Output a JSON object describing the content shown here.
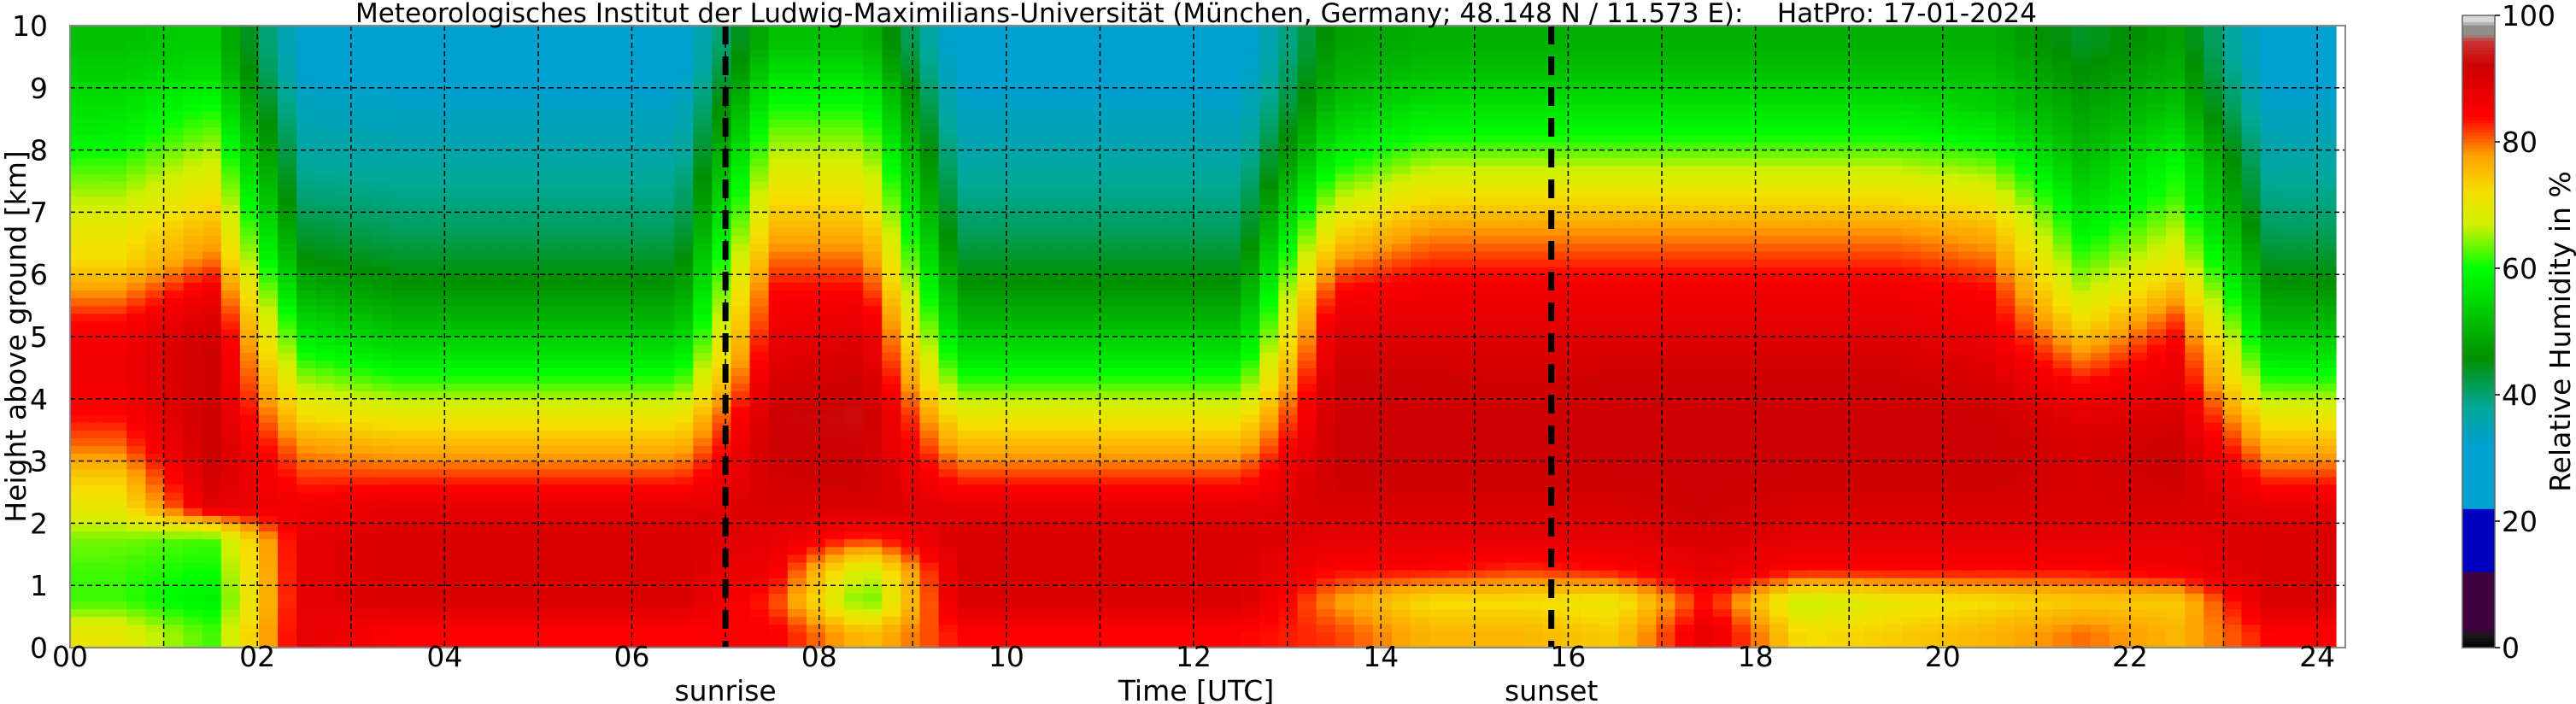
{
  "chart_data": {
    "type": "heatmap",
    "title": "Meteorologisches Institut der Ludwig-Maximilians-Universität (München, Germany; 48.148 N / 11.573 E):    HatPro: 17-01-2024",
    "xlabel": "Time [UTC]",
    "ylabel": "Height above ground [km]",
    "xlim": [
      0,
      24.3
    ],
    "ylim": [
      0,
      10
    ],
    "grid": true,
    "x_ticks": [
      0,
      2,
      4,
      6,
      8,
      10,
      12,
      14,
      16,
      18,
      20,
      22,
      24
    ],
    "x_tick_labels": [
      "00",
      "02",
      "04",
      "06",
      "08",
      "10",
      "12",
      "14",
      "16",
      "18",
      "20",
      "22",
      "24"
    ],
    "y_ticks": [
      0,
      1,
      2,
      3,
      4,
      5,
      6,
      7,
      8,
      9,
      10
    ],
    "y_tick_labels": [
      "0",
      "1",
      "2",
      "3",
      "4",
      "5",
      "6",
      "7",
      "8",
      "9",
      "10"
    ],
    "annotations": [
      {
        "label": "sunrise",
        "x": 7.0
      },
      {
        "label": "sunset",
        "x": 15.82
      }
    ],
    "colorbar": {
      "label": "Relative Humidity in %",
      "range": [
        0,
        100
      ],
      "ticks": [
        0,
        20,
        40,
        60,
        80,
        100
      ],
      "tick_labels": [
        "0",
        "20",
        "40",
        "60",
        "80",
        "100"
      ],
      "stops": [
        [
          0,
          "#000000"
        ],
        [
          2,
          "#1a1a1a"
        ],
        [
          3,
          "#400040"
        ],
        [
          12,
          "#400040"
        ],
        [
          12.01,
          "#0000c0"
        ],
        [
          22,
          "#0000c0"
        ],
        [
          22.01,
          "#00a0d0"
        ],
        [
          32,
          "#00a0d0"
        ],
        [
          38,
          "#00a898"
        ],
        [
          46,
          "#009000"
        ],
        [
          53,
          "#00c800"
        ],
        [
          60,
          "#00ff00"
        ],
        [
          67,
          "#d0f000"
        ],
        [
          72,
          "#f5e000"
        ],
        [
          78,
          "#ffa000"
        ],
        [
          84,
          "#ff0000"
        ],
        [
          92,
          "#cc0000"
        ],
        [
          96,
          "#cc3333"
        ],
        [
          97,
          "#909088"
        ],
        [
          98.5,
          "#909088"
        ],
        [
          99,
          "#d8d8d8"
        ],
        [
          100,
          "#d8d8d8"
        ]
      ]
    },
    "x_centers_hours": [
      0.5,
      1.5,
      2.5,
      3.5,
      4.5,
      5.5,
      6.5,
      7.5,
      8.5,
      9.5,
      10.5,
      11.5,
      12.5,
      13.5,
      14.5,
      15.5,
      16.5,
      17.5,
      18.5,
      19.5,
      20.5,
      21.5,
      22.5,
      23.5
    ],
    "y_centers_km": [
      0.25,
      0.75,
      1.25,
      1.75,
      2.25,
      2.75,
      3.25,
      3.75,
      4.25,
      4.75,
      5.25,
      5.75,
      6.25,
      6.75,
      7.25,
      7.75,
      8.25,
      8.75,
      9.25,
      9.75
    ],
    "z_rh_percent_by_hour": [
      [
        70,
        62,
        62,
        64,
        70,
        74,
        80,
        84,
        86,
        86,
        84,
        78,
        72,
        70,
        66,
        62,
        58,
        56,
        54,
        52
      ],
      [
        62,
        58,
        60,
        62,
        88,
        91,
        92,
        92,
        92,
        92,
        90,
        86,
        80,
        76,
        72,
        68,
        64,
        60,
        56,
        54
      ],
      [
        88,
        88,
        88,
        88,
        86,
        82,
        78,
        72,
        66,
        60,
        55,
        50,
        46,
        43,
        40,
        38,
        36,
        34,
        32,
        31
      ],
      [
        84,
        90,
        90,
        90,
        88,
        82,
        76,
        70,
        62,
        56,
        51,
        47,
        44,
        41,
        39,
        37,
        35,
        33,
        31,
        30
      ],
      [
        84,
        90,
        90,
        90,
        88,
        82,
        76,
        70,
        62,
        56,
        51,
        47,
        44,
        41,
        39,
        37,
        35,
        33,
        31,
        30
      ],
      [
        84,
        90,
        90,
        90,
        88,
        82,
        76,
        70,
        62,
        56,
        51,
        47,
        44,
        41,
        39,
        37,
        35,
        33,
        31,
        30
      ],
      [
        84,
        90,
        90,
        90,
        88,
        82,
        76,
        70,
        62,
        56,
        51,
        47,
        44,
        41,
        39,
        37,
        35,
        33,
        31,
        30
      ],
      [
        85,
        82,
        86,
        88,
        90,
        91,
        92,
        92,
        90,
        88,
        86,
        84,
        80,
        76,
        72,
        68,
        64,
        60,
        56,
        52
      ],
      [
        75,
        62,
        66,
        82,
        90,
        92,
        92,
        93,
        92,
        90,
        88,
        84,
        80,
        76,
        72,
        68,
        64,
        60,
        56,
        52
      ],
      [
        84,
        90,
        90,
        90,
        88,
        82,
        76,
        70,
        62,
        56,
        51,
        47,
        44,
        41,
        39,
        37,
        35,
        33,
        31,
        30
      ],
      [
        84,
        90,
        90,
        90,
        88,
        82,
        76,
        70,
        62,
        56,
        51,
        47,
        44,
        41,
        39,
        37,
        35,
        33,
        31,
        30
      ],
      [
        84,
        90,
        90,
        90,
        88,
        82,
        76,
        70,
        62,
        56,
        51,
        47,
        44,
        41,
        39,
        37,
        35,
        33,
        31,
        30
      ],
      [
        84,
        90,
        90,
        90,
        88,
        82,
        76,
        70,
        62,
        56,
        51,
        47,
        44,
        41,
        39,
        37,
        35,
        33,
        31,
        30
      ],
      [
        82,
        78,
        84,
        88,
        90,
        92,
        92,
        92,
        92,
        90,
        88,
        84,
        78,
        72,
        66,
        60,
        56,
        52,
        50,
        48
      ],
      [
        76,
        72,
        84,
        88,
        90,
        92,
        92,
        92,
        92,
        90,
        88,
        86,
        82,
        78,
        72,
        66,
        60,
        56,
        52,
        50
      ],
      [
        76,
        72,
        82,
        88,
        90,
        92,
        92,
        92,
        91,
        90,
        88,
        86,
        82,
        78,
        72,
        66,
        60,
        56,
        52,
        50
      ],
      [
        74,
        70,
        84,
        88,
        90,
        92,
        92,
        92,
        92,
        90,
        88,
        86,
        82,
        78,
        72,
        66,
        60,
        56,
        52,
        50
      ],
      [
        88,
        84,
        88,
        90,
        92,
        92,
        92,
        92,
        92,
        90,
        88,
        86,
        82,
        78,
        72,
        66,
        60,
        56,
        52,
        50
      ],
      [
        72,
        66,
        84,
        88,
        90,
        92,
        92,
        92,
        92,
        90,
        88,
        86,
        82,
        78,
        72,
        66,
        60,
        56,
        52,
        50
      ],
      [
        74,
        70,
        84,
        88,
        90,
        92,
        92,
        92,
        92,
        90,
        88,
        86,
        82,
        78,
        72,
        66,
        60,
        56,
        52,
        50
      ],
      [
        76,
        72,
        84,
        88,
        90,
        92,
        92,
        92,
        90,
        88,
        86,
        84,
        80,
        76,
        70,
        64,
        58,
        54,
        52,
        50
      ],
      [
        80,
        74,
        84,
        88,
        90,
        90,
        90,
        88,
        84,
        78,
        72,
        66,
        62,
        58,
        55,
        52,
        50,
        48,
        46,
        44
      ],
      [
        76,
        74,
        86,
        88,
        90,
        92,
        92,
        90,
        88,
        86,
        82,
        76,
        70,
        66,
        62,
        60,
        56,
        52,
        50,
        48
      ],
      [
        84,
        90,
        90,
        90,
        88,
        82,
        76,
        70,
        62,
        56,
        51,
        47,
        44,
        41,
        39,
        37,
        35,
        33,
        31,
        30
      ]
    ]
  }
}
